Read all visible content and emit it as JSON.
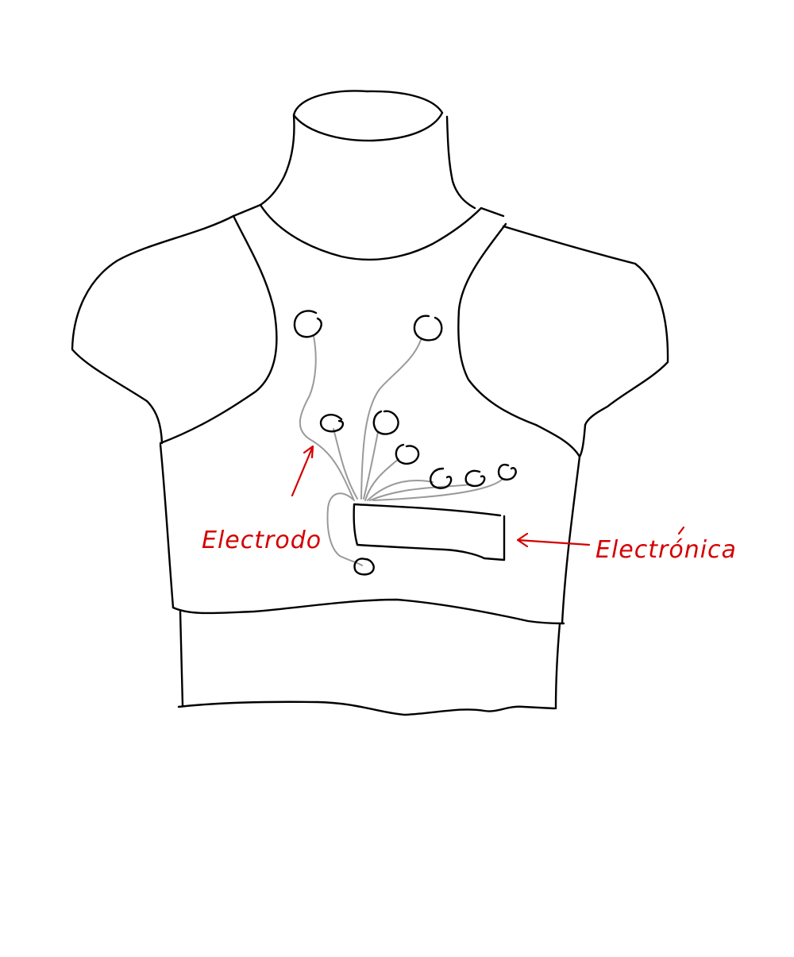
{
  "labels": {
    "electrode": "Electrodo",
    "electronics": "Electrónica"
  },
  "colors": {
    "outline": "#000000",
    "wires": "#9a9a9a",
    "annotations": "#d40000",
    "background": "#ffffff"
  }
}
